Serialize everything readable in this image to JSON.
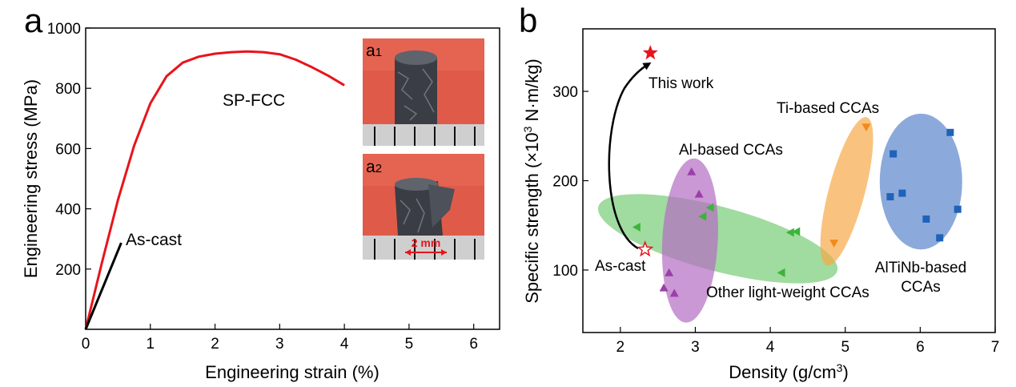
{
  "chart_data": [
    {
      "panel": "a",
      "type": "line",
      "xlabel": "Engineering strain (%)",
      "ylabel": "Engineering stress (MPa)",
      "xlim": [
        0,
        6.4
      ],
      "ylim": [
        0,
        1000
      ],
      "xticks": [
        "0",
        "1",
        "2",
        "3",
        "4",
        "5",
        "6"
      ],
      "yticks": [
        "200",
        "400",
        "600",
        "800",
        "1000"
      ],
      "series": [
        {
          "name": "SP-FCC",
          "color": "#e8141c",
          "x": [
            0,
            0.25,
            0.5,
            0.75,
            1.0,
            1.25,
            1.5,
            1.75,
            2.0,
            2.25,
            2.5,
            2.75,
            3.0,
            3.25,
            3.5,
            3.75,
            4.0
          ],
          "y": [
            0,
            220,
            430,
            610,
            750,
            840,
            885,
            905,
            915,
            920,
            922,
            920,
            913,
            895,
            870,
            842,
            810
          ]
        },
        {
          "name": "As-cast",
          "color": "#000000",
          "x": [
            0,
            0.55
          ],
          "y": [
            0,
            287
          ]
        }
      ],
      "insets": [
        {
          "label_letter": "a",
          "label_sub": "1"
        },
        {
          "label_letter": "a",
          "label_sub": "2",
          "scale_bar": "2 mm"
        }
      ]
    },
    {
      "panel": "b",
      "type": "scatter",
      "xlabel_main": "Density (g/cm",
      "xlabel_sup": "3",
      "xlabel_end": ")",
      "ylabel_main": "Specific strength (×10",
      "ylabel_sup": "3",
      "ylabel_end": " N·m/kg)",
      "xlim": [
        1.5,
        7
      ],
      "ylim": [
        30,
        370
      ],
      "xticks": [
        "2",
        "3",
        "4",
        "5",
        "6",
        "7"
      ],
      "yticks": [
        "100",
        "200",
        "300"
      ],
      "groups": [
        {
          "name": "Al-based CCAs",
          "marker": "triangle-up",
          "color": "#9a3fa8",
          "points": [
            [
              2.95,
              210
            ],
            [
              3.05,
              185
            ],
            [
              2.65,
              97
            ],
            [
              2.58,
              80
            ],
            [
              2.72,
              74
            ]
          ]
        },
        {
          "name": "Other light-weight CCAs",
          "marker": "triangle-left",
          "color": "#3db33a",
          "points": [
            [
              2.22,
              148
            ],
            [
              3.2,
              170
            ],
            [
              3.1,
              160
            ],
            [
              4.35,
              143
            ],
            [
              4.27,
              142
            ],
            [
              4.15,
              97
            ]
          ]
        },
        {
          "name": "Ti-based CCAs",
          "marker": "triangle-down",
          "color": "#f08a1c",
          "points": [
            [
              5.28,
              260
            ],
            [
              4.85,
              130
            ]
          ]
        },
        {
          "name": "AlTiNb-based CCAs",
          "marker": "square",
          "color": "#1f63b8",
          "points": [
            [
              5.64,
              230
            ],
            [
              5.76,
              186
            ],
            [
              5.6,
              182
            ],
            [
              6.4,
              254
            ],
            [
              6.5,
              168
            ],
            [
              6.08,
              157
            ],
            [
              6.26,
              136
            ]
          ]
        },
        {
          "name": "This work",
          "marker": "star-filled",
          "color": "#e8141c",
          "points": [
            [
              2.4,
              343
            ]
          ]
        },
        {
          "name": "As-cast",
          "marker": "star-open",
          "color": "#e8141c",
          "points": [
            [
              2.33,
              123
            ]
          ]
        }
      ],
      "ellipses": [
        {
          "group": "Other light-weight CCAs",
          "cx": 3.3,
          "cy": 135,
          "rx": 1.65,
          "ry": 36,
          "rotate_deg": 15,
          "color": "#77cc77"
        },
        {
          "group": "Al-based CCAs",
          "cx": 2.93,
          "cy": 133,
          "rx": 0.37,
          "ry": 92,
          "rotate_deg": 3,
          "color": "#b46cc2"
        },
        {
          "group": "Ti-based CCAs",
          "cx": 5.02,
          "cy": 188,
          "rx": 0.24,
          "ry": 86,
          "rotate_deg": 15,
          "color": "#f7a948"
        },
        {
          "group": "AlTiNb-based CCAs",
          "cx": 6.01,
          "cy": 199,
          "rx": 0.55,
          "ry": 76,
          "rotate_deg": 0,
          "color": "#5a86cc"
        }
      ]
    }
  ]
}
